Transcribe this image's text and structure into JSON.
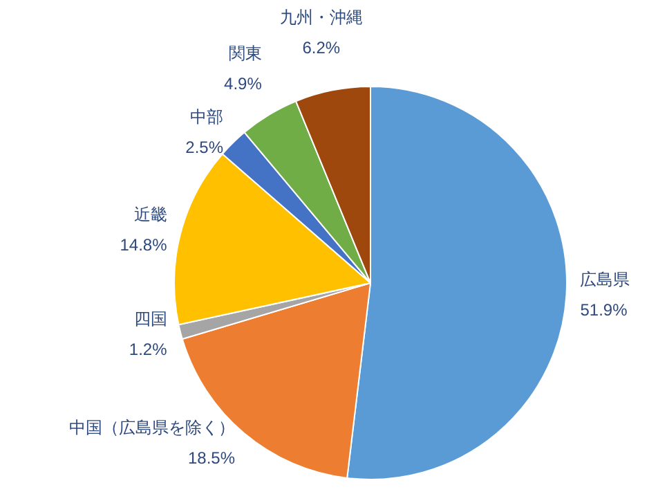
{
  "chart_data": {
    "type": "pie",
    "categories": [
      "広島県",
      "中国（広島県を除く）",
      "四国",
      "近畿",
      "中部",
      "関東",
      "九州・沖縄"
    ],
    "values": [
      51.9,
      18.5,
      1.2,
      14.8,
      2.5,
      4.9,
      6.2
    ],
    "colors": [
      "#5b9bd5",
      "#ed7d31",
      "#a5a5a5",
      "#ffc000",
      "#4472c4",
      "#70ad47",
      "#9e480e"
    ],
    "value_labels": [
      "51.9%",
      "18.5%",
      "1.2%",
      "14.8%",
      "2.5%",
      "4.9%",
      "6.2%"
    ],
    "legend": false
  }
}
